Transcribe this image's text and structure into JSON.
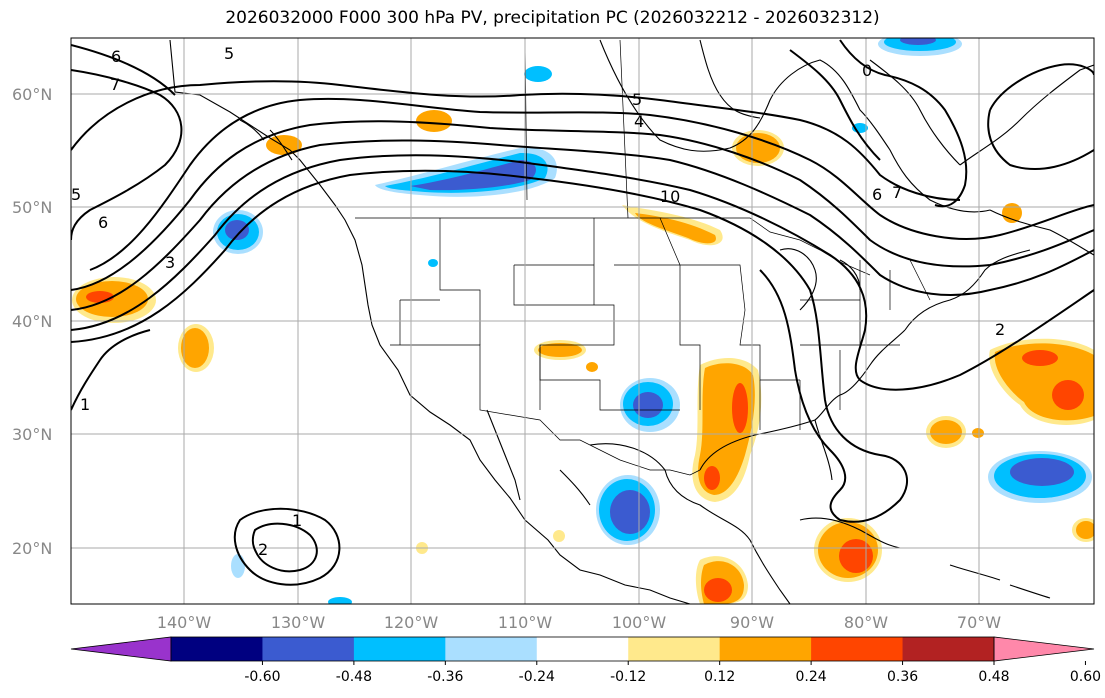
{
  "title": "2026032000 F000 300 hPa PV, precipitation PC (2026032212 - 2026032312)",
  "map": {
    "lat_labels": [
      "60°N",
      "50°N",
      "40°N",
      "30°N",
      "20°N"
    ],
    "lon_labels": [
      "140°W",
      "130°W",
      "120°W",
      "110°W",
      "100°W",
      "90°W",
      "80°W",
      "70°W"
    ],
    "contour_labels": [
      "6",
      "5",
      "7",
      "6",
      "5",
      "3",
      "5",
      "4",
      "10",
      "7",
      "6",
      "2",
      "1",
      "1",
      "2",
      "0"
    ]
  },
  "colorbar": {
    "ticks": [
      "-0.60",
      "-0.48",
      "-0.36",
      "-0.24",
      "-0.12",
      "0.12",
      "0.24",
      "0.36",
      "0.48",
      "0.60"
    ],
    "colors": [
      "#9933cc",
      "#000080",
      "#3b5bd0",
      "#00bfff",
      "#aadfff",
      "#ffffff",
      "#ffe98c",
      "#ffa500",
      "#ff4500",
      "#b22222",
      "#ff88aa"
    ]
  },
  "precip_colors": {
    "neg_light": "#aadfff",
    "neg_mid": "#00bfff",
    "neg_strong": "#3b5bd0",
    "pos_light": "#ffe98c",
    "pos_mid": "#ffa500",
    "pos_strong": "#ff4500"
  }
}
